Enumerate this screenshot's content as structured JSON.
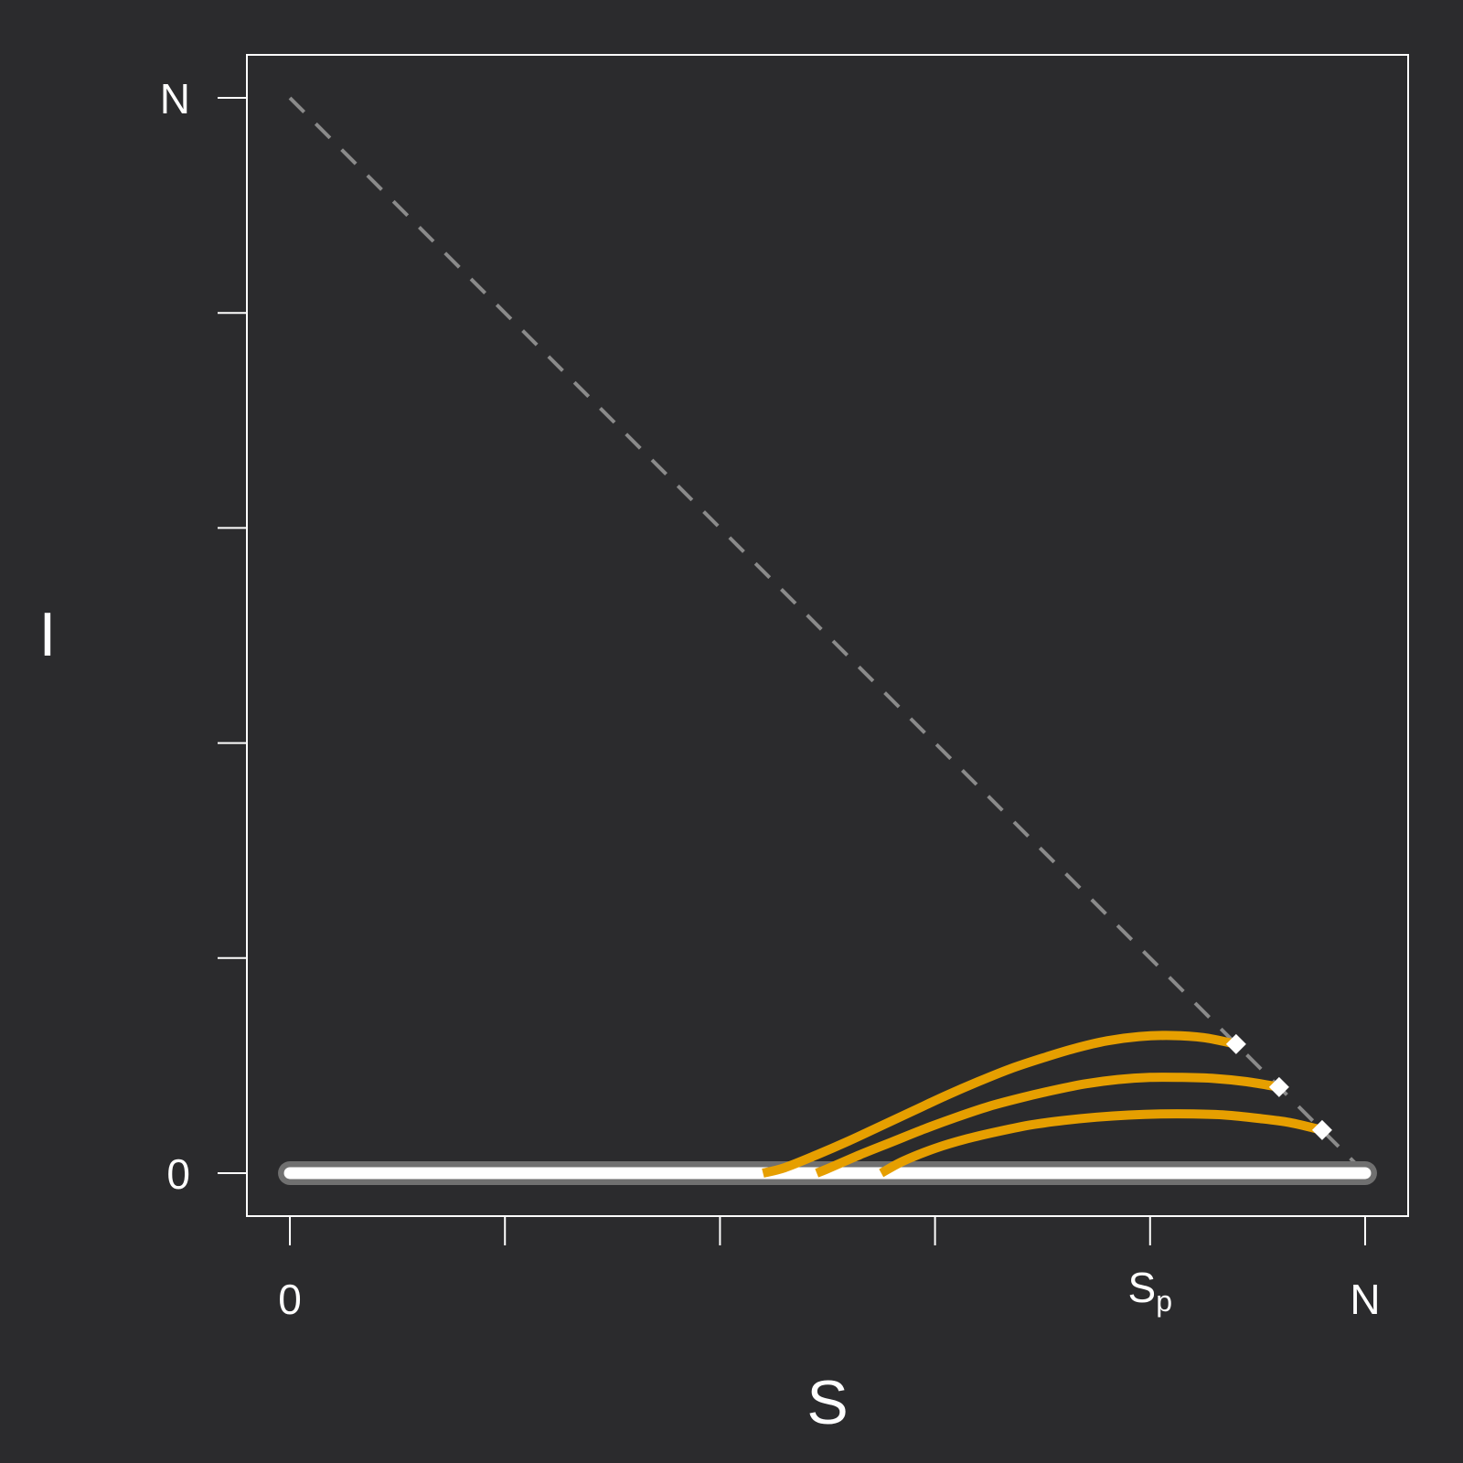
{
  "chart_data": {
    "type": "line",
    "title": "",
    "xlabel": "S",
    "ylabel": "I",
    "xlim": [
      -0.04,
      1.04
    ],
    "ylim": [
      -0.04,
      1.04
    ],
    "x_ticks": [
      {
        "value": 0,
        "label": "0"
      },
      {
        "value": 0.2,
        "label": ""
      },
      {
        "value": 0.4,
        "label": ""
      },
      {
        "value": 0.6,
        "label": ""
      },
      {
        "value": 0.8,
        "label": "Sp"
      },
      {
        "value": 1.0,
        "label": "N"
      }
    ],
    "y_ticks": [
      {
        "value": 0,
        "label": "0"
      },
      {
        "value": 0.2,
        "label": ""
      },
      {
        "value": 0.4,
        "label": ""
      },
      {
        "value": 0.6,
        "label": ""
      },
      {
        "value": 0.8,
        "label": ""
      },
      {
        "value": 1.0,
        "label": "N"
      }
    ],
    "reference_line": {
      "style": "dashed",
      "color": "#8a8a8a",
      "x": [
        0,
        1
      ],
      "y": [
        1,
        0
      ]
    },
    "equilibrium_line": {
      "y": 0,
      "x_range": [
        0,
        1
      ],
      "color": "#ffffff",
      "outline_color": "#707070"
    },
    "series": [
      {
        "color": "#e69f00",
        "x": [
          0.88,
          0.85,
          0.82,
          0.79,
          0.76,
          0.73,
          0.7,
          0.67,
          0.64,
          0.61,
          0.58,
          0.55,
          0.52,
          0.49,
          0.46,
          0.44
        ],
        "y": [
          0.12,
          0.126,
          0.128,
          0.127,
          0.123,
          0.116,
          0.107,
          0.097,
          0.085,
          0.072,
          0.058,
          0.044,
          0.03,
          0.017,
          0.005,
          0.0
        ]
      },
      {
        "color": "#e69f00",
        "x": [
          0.92,
          0.89,
          0.86,
          0.83,
          0.8,
          0.77,
          0.74,
          0.71,
          0.68,
          0.65,
          0.62,
          0.59,
          0.56,
          0.53,
          0.5,
          0.49
        ],
        "y": [
          0.08,
          0.085,
          0.088,
          0.089,
          0.089,
          0.087,
          0.083,
          0.077,
          0.07,
          0.062,
          0.052,
          0.041,
          0.029,
          0.017,
          0.004,
          0.0
        ]
      },
      {
        "color": "#e69f00",
        "x": [
          0.96,
          0.93,
          0.9,
          0.87,
          0.84,
          0.81,
          0.78,
          0.75,
          0.72,
          0.69,
          0.66,
          0.63,
          0.6,
          0.57,
          0.55
        ],
        "y": [
          0.04,
          0.047,
          0.051,
          0.054,
          0.055,
          0.055,
          0.054,
          0.052,
          0.049,
          0.045,
          0.039,
          0.032,
          0.023,
          0.011,
          0.0
        ]
      }
    ],
    "start_points": {
      "color": "#ffffff",
      "x": [
        0.88,
        0.92,
        0.96
      ],
      "y": [
        0.12,
        0.08,
        0.04
      ]
    },
    "colors": {
      "background": "#2b2b2d",
      "axis": "#ffffff",
      "trajectory": "#e69f00"
    },
    "grid": false,
    "legend": "none"
  }
}
